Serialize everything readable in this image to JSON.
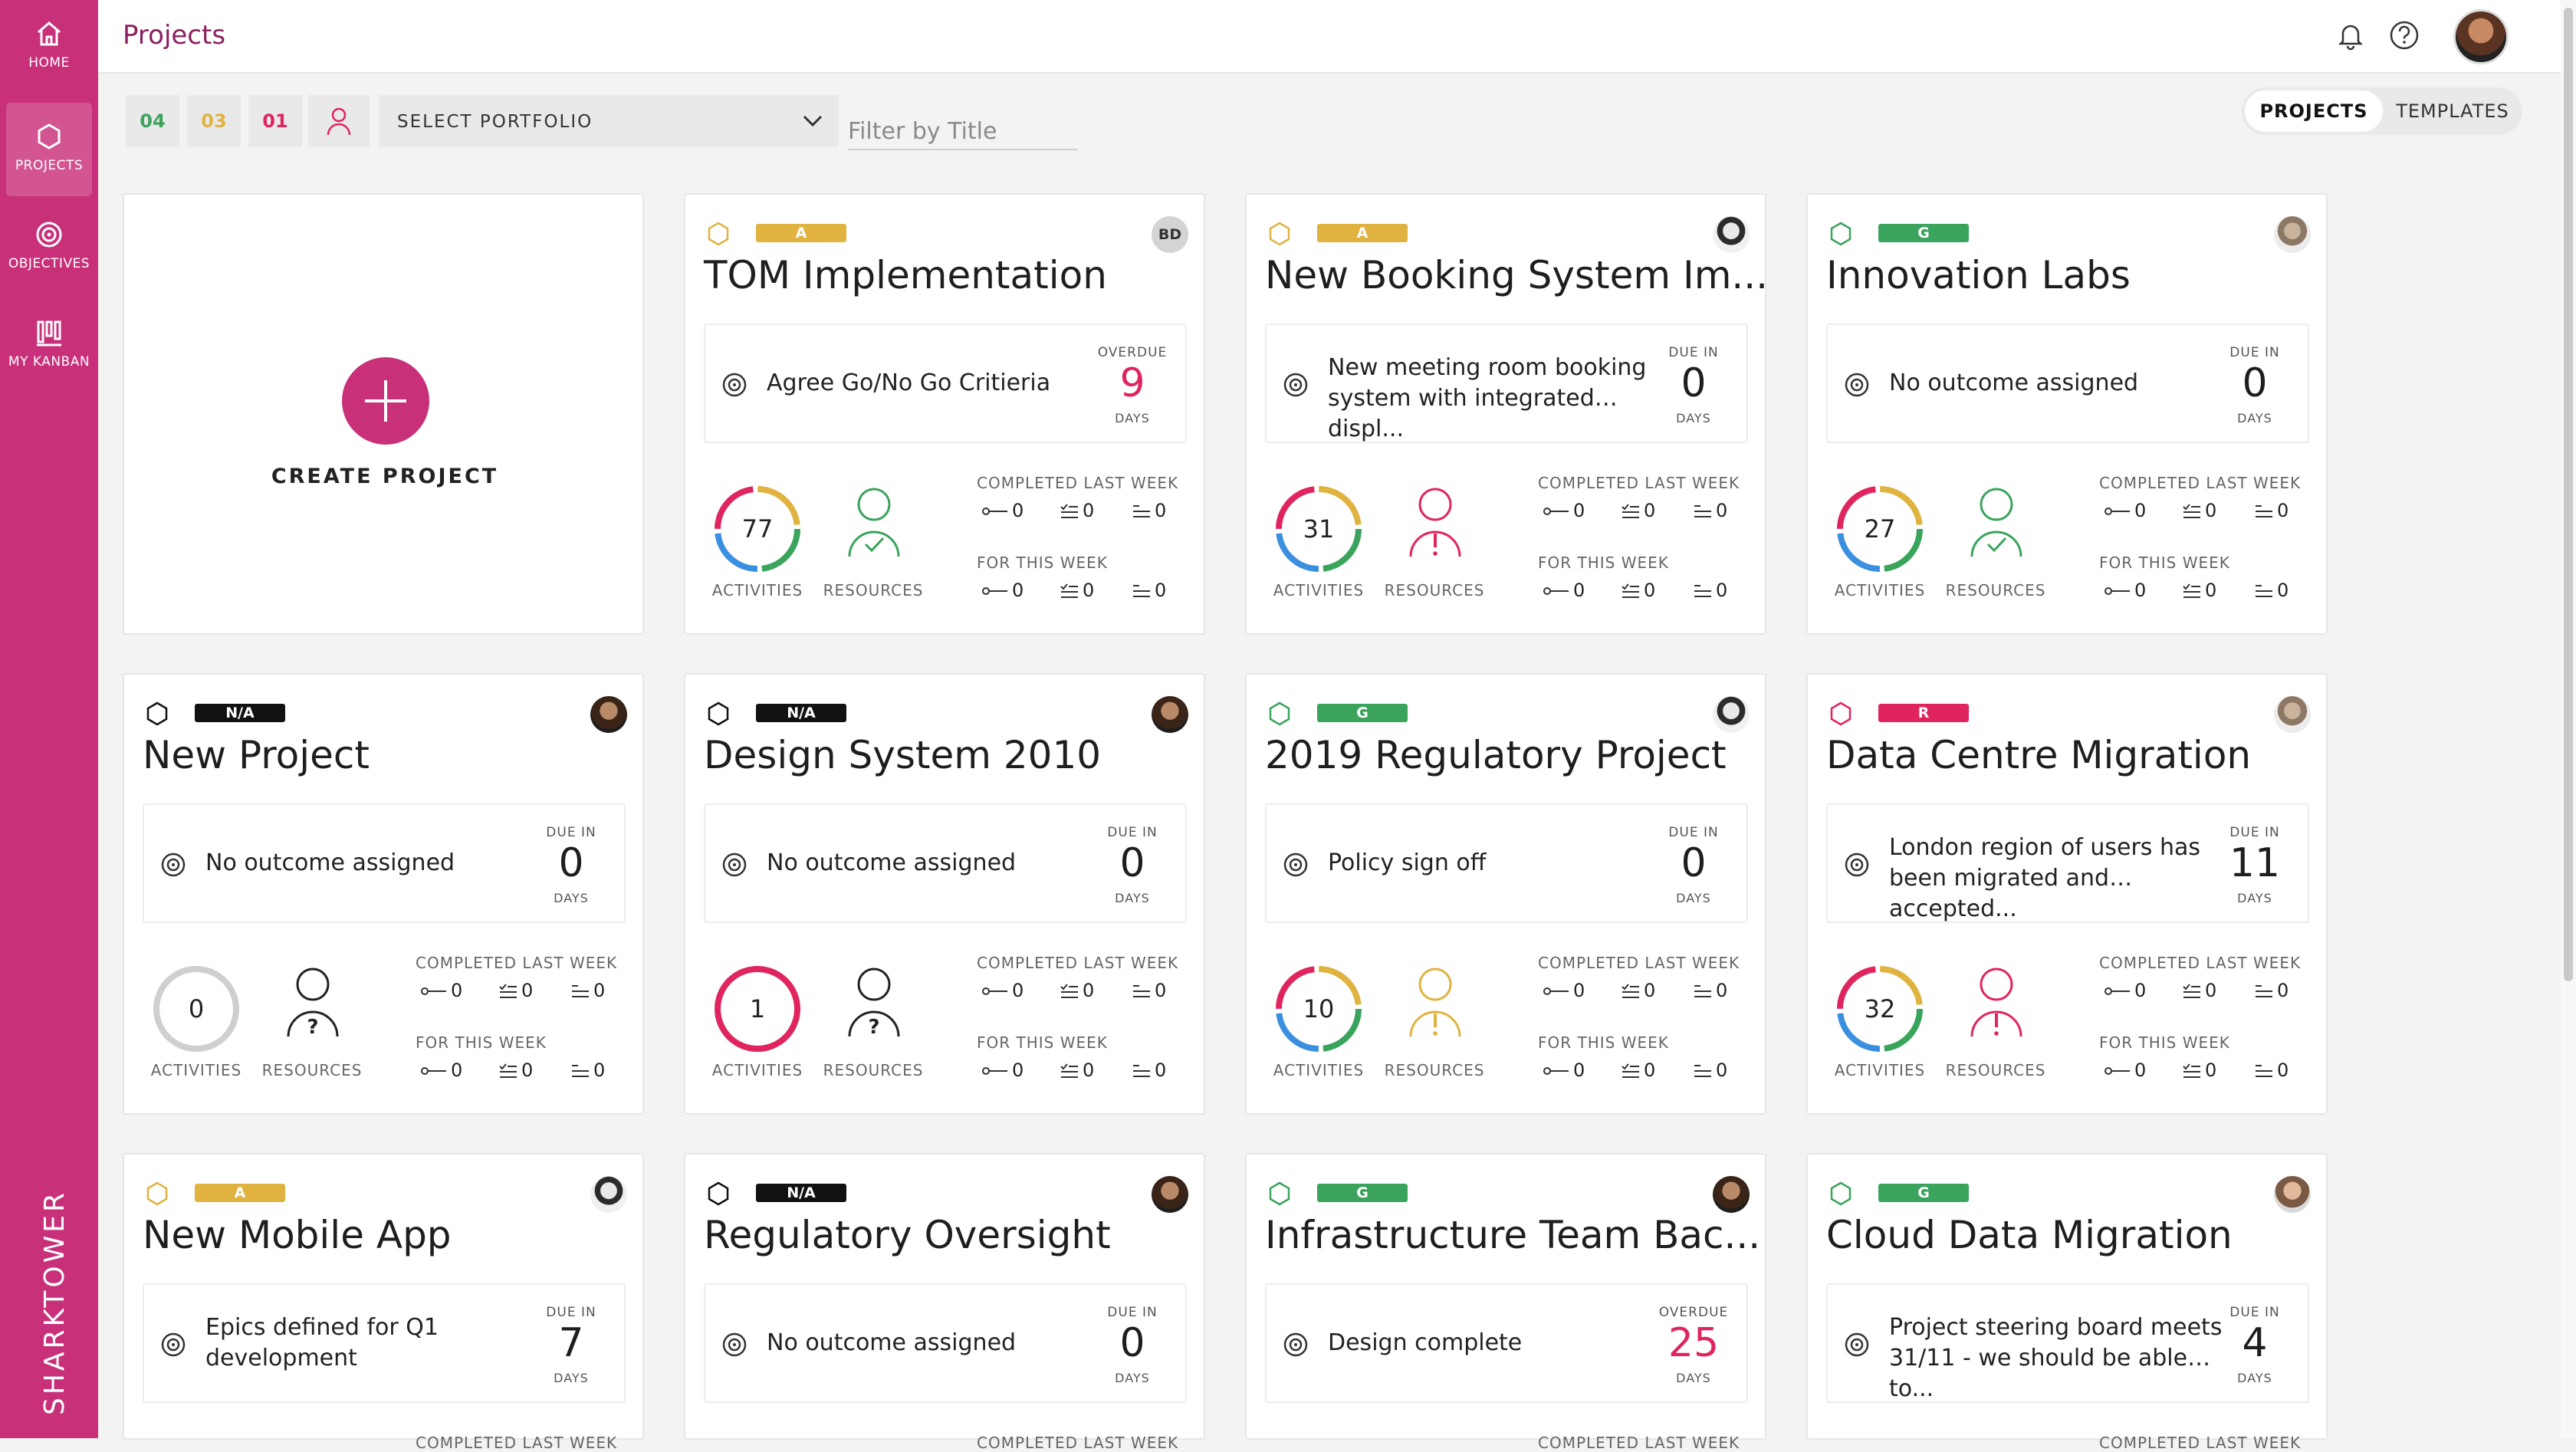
{
  "sidebar": {
    "items": [
      {
        "label": "HOME",
        "icon": "home-icon"
      },
      {
        "label": "PROJECTS",
        "icon": "hexagon-icon"
      },
      {
        "label": "OBJECTIVES",
        "icon": "target-icon"
      },
      {
        "label": "MY KANBAN",
        "icon": "kanban-icon"
      }
    ],
    "active": "PROJECTS",
    "brand": "SHARKTOWER"
  },
  "header": {
    "title": "Projects"
  },
  "toolbar": {
    "rag_counts": [
      {
        "label": "04",
        "color": "#3aa35c"
      },
      {
        "label": "03",
        "color": "#e0b341"
      },
      {
        "label": "01",
        "color": "#e0245e"
      }
    ],
    "portfolio_label": "SELECT PORTFOLIO",
    "filter_placeholder": "Filter by Title",
    "toggle": {
      "projects": "PROJECTS",
      "templates": "TEMPLATES"
    }
  },
  "create": {
    "label": "CREATE PROJECT"
  },
  "labels": {
    "overdue": "OVERDUE",
    "due_in": "DUE IN",
    "days": "DAYS",
    "activities": "ACTIVITIES",
    "resources": "RESOURCES",
    "completed_last_week": "COMPLETED LAST WEEK",
    "for_this_week": "FOR THIS WEEK"
  },
  "colors": {
    "A": "#e0b341",
    "G": "#3aa35c",
    "R": "#e0245e",
    "N/A": "#111111"
  },
  "projects": [
    {
      "title": "TOM Implementation",
      "rag": "A",
      "owner": "BD",
      "outcome": "Agree Go/No Go Critieria",
      "due_type": "overdue",
      "days": "9",
      "activities": "77",
      "ring": "multi",
      "resources": "ok",
      "last_week": [
        "0",
        "0",
        "0"
      ],
      "this_week": [
        "0",
        "0",
        "0"
      ]
    },
    {
      "title": "New Booking System Im...",
      "rag": "A",
      "owner": "",
      "avatar": "a",
      "outcome": "New meeting room booking system with integrated displ...",
      "due_type": "due",
      "days": "0",
      "activities": "31",
      "ring": "multi",
      "resources": "alert",
      "last_week": [
        "0",
        "0",
        "0"
      ],
      "this_week": [
        "0",
        "0",
        "0"
      ]
    },
    {
      "title": "Innovation Labs",
      "rag": "G",
      "owner": "",
      "avatar": "b",
      "outcome": "No outcome assigned",
      "due_type": "due",
      "days": "0",
      "activities": "27",
      "ring": "multi",
      "resources": "ok",
      "last_week": [
        "0",
        "0",
        "0"
      ],
      "this_week": [
        "0",
        "0",
        "0"
      ]
    },
    {
      "title": "New Project",
      "rag": "N/A",
      "owner": "",
      "avatar": "c",
      "outcome": "No outcome assigned",
      "due_type": "due",
      "days": "0",
      "activities": "0",
      "ring": "empty",
      "resources": "unknown",
      "last_week": [
        "0",
        "0",
        "0"
      ],
      "this_week": [
        "0",
        "0",
        "0"
      ]
    },
    {
      "title": "Design System 2010",
      "rag": "N/A",
      "owner": "",
      "avatar": "c",
      "outcome": "No outcome assigned",
      "due_type": "due",
      "days": "0",
      "activities": "1",
      "ring": "red",
      "resources": "unknown",
      "last_week": [
        "0",
        "0",
        "0"
      ],
      "this_week": [
        "0",
        "0",
        "0"
      ]
    },
    {
      "title": "2019 Regulatory Project",
      "rag": "G",
      "owner": "",
      "avatar": "a",
      "outcome": "Policy sign off",
      "due_type": "due",
      "days": "0",
      "activities": "10",
      "ring": "multi",
      "resources": "warn",
      "last_week": [
        "0",
        "0",
        "0"
      ],
      "this_week": [
        "0",
        "0",
        "0"
      ]
    },
    {
      "title": "Data Centre Migration",
      "rag": "R",
      "owner": "",
      "avatar": "b",
      "outcome": "London region of users has been migrated and accepted...",
      "due_type": "due",
      "days": "11",
      "activities": "32",
      "ring": "multi",
      "resources": "alert",
      "last_week": [
        "0",
        "0",
        "0"
      ],
      "this_week": [
        "0",
        "0",
        "0"
      ]
    },
    {
      "title": "New Mobile App",
      "rag": "A",
      "owner": "",
      "avatar": "a",
      "outcome": "Epics defined for Q1 development",
      "due_type": "due",
      "days": "7"
    },
    {
      "title": "Regulatory Oversight",
      "rag": "N/A",
      "owner": "",
      "avatar": "c",
      "outcome": "No outcome assigned",
      "due_type": "due",
      "days": "0"
    },
    {
      "title": "Infrastructure Team Bac...",
      "rag": "G",
      "owner": "",
      "avatar": "c",
      "outcome": "Design complete",
      "due_type": "overdue",
      "days": "25"
    },
    {
      "title": "Cloud Data Migration",
      "rag": "G",
      "owner": "",
      "avatar": "d",
      "outcome": "Project steering board meets 31/11 - we should be able to...",
      "due_type": "due",
      "days": "4"
    }
  ]
}
